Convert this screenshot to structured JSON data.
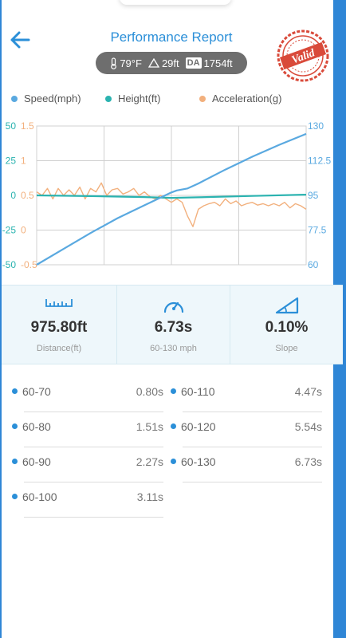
{
  "header": {
    "title": "Performance Report",
    "conditions": {
      "temperature": "79°F",
      "altitude": "29ft",
      "da_badge": "DA",
      "density_altitude": "1754ft"
    },
    "stamp_text": "Valid"
  },
  "colors": {
    "accent": "#2b8fd8",
    "speed": "#5aa9e0",
    "height": "#2bb3b0",
    "acceleration": "#f2b07d"
  },
  "legend": [
    {
      "label": "Speed(mph)",
      "color": "#5aa9e0"
    },
    {
      "label": "Height(ft)",
      "color": "#2bb3b0"
    },
    {
      "label": "Acceleration(g)",
      "color": "#f2b07d"
    }
  ],
  "chart_data": {
    "type": "line",
    "left_axis_height": {
      "ticks": [
        "50",
        "25",
        "0",
        "-25",
        "-50"
      ],
      "ylim": [
        -50,
        50
      ],
      "color": "#2bb3b0"
    },
    "left_axis_accel": {
      "ticks": [
        "1.5",
        "1",
        "0.5",
        "0",
        "-0.5"
      ],
      "ylim": [
        -0.5,
        1.5
      ],
      "color": "#f2b07d"
    },
    "right_axis_speed": {
      "ticks": [
        "130",
        "112.5",
        "95",
        "77.5",
        "60"
      ],
      "ylim": [
        60,
        130
      ],
      "color": "#5aa9e0"
    },
    "x_gridlines": 4,
    "series": [
      {
        "name": "Speed(mph)",
        "axis": "right",
        "x": [
          0,
          0.1,
          0.2,
          0.3,
          0.4,
          0.5,
          0.52,
          0.56,
          0.6,
          0.7,
          0.8,
          0.9,
          1.0
        ],
        "values": [
          60,
          68,
          76,
          83.5,
          90,
          96.5,
          97.5,
          98.5,
          101,
          108,
          114.5,
          120.5,
          126
        ]
      },
      {
        "name": "Height(ft)",
        "axis": "left_height",
        "x": [
          0,
          0.2,
          0.4,
          0.5,
          0.6,
          0.8,
          1.0
        ],
        "values": [
          0,
          -0.5,
          -1.2,
          -1.8,
          -1.4,
          -0.4,
          0.5
        ]
      },
      {
        "name": "Acceleration(g)",
        "axis": "left_accel",
        "x": [
          0.0,
          0.02,
          0.04,
          0.06,
          0.08,
          0.1,
          0.12,
          0.14,
          0.16,
          0.18,
          0.2,
          0.22,
          0.24,
          0.26,
          0.28,
          0.3,
          0.32,
          0.34,
          0.36,
          0.38,
          0.4,
          0.42,
          0.44,
          0.46,
          0.48,
          0.5,
          0.52,
          0.54,
          0.56,
          0.58,
          0.6,
          0.62,
          0.64,
          0.66,
          0.68,
          0.7,
          0.72,
          0.74,
          0.76,
          0.78,
          0.8,
          0.82,
          0.84,
          0.86,
          0.88,
          0.9,
          0.92,
          0.94,
          0.96,
          0.98,
          1.0
        ],
        "values": [
          0.55,
          0.5,
          0.6,
          0.45,
          0.6,
          0.5,
          0.58,
          0.5,
          0.62,
          0.45,
          0.6,
          0.55,
          0.68,
          0.5,
          0.58,
          0.6,
          0.52,
          0.55,
          0.6,
          0.5,
          0.55,
          0.48,
          0.45,
          0.5,
          0.45,
          0.4,
          0.45,
          0.4,
          0.2,
          0.05,
          0.3,
          0.35,
          0.38,
          0.4,
          0.35,
          0.45,
          0.38,
          0.42,
          0.35,
          0.38,
          0.4,
          0.36,
          0.38,
          0.35,
          0.38,
          0.35,
          0.4,
          0.32,
          0.38,
          0.35,
          0.3
        ]
      }
    ]
  },
  "stats": [
    {
      "value": "975.80ft",
      "label": "Distance(ft)",
      "icon": "ruler-icon"
    },
    {
      "value": "6.73s",
      "label": "60-130 mph",
      "icon": "speedometer-icon"
    },
    {
      "value": "0.10%",
      "label": "Slope",
      "icon": "slope-icon"
    }
  ],
  "splits": [
    {
      "label": "60-70",
      "value": "0.80s"
    },
    {
      "label": "60-110",
      "value": "4.47s"
    },
    {
      "label": "60-80",
      "value": "1.51s"
    },
    {
      "label": "60-120",
      "value": "5.54s"
    },
    {
      "label": "60-90",
      "value": "2.27s"
    },
    {
      "label": "60-130",
      "value": "6.73s"
    },
    {
      "label": "60-100",
      "value": "3.11s"
    }
  ]
}
